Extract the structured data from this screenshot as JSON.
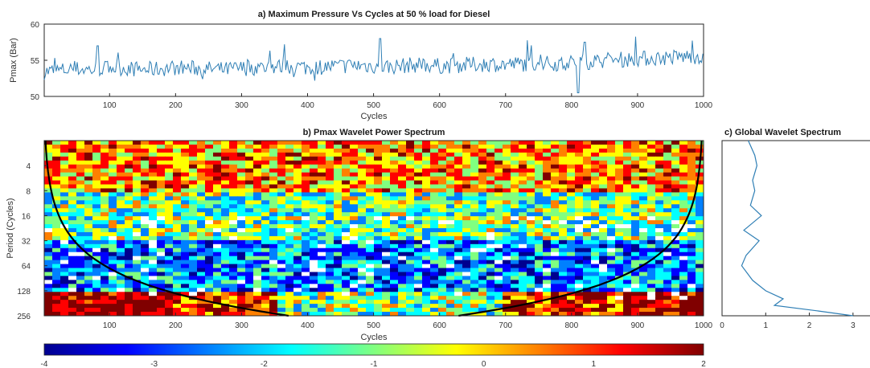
{
  "chart_data": [
    {
      "type": "line",
      "title": "a) Maximum Pressure Vs Cycles at 50 % load for Diesel",
      "xlabel": "Cycles",
      "ylabel": "Pmax (Bar)",
      "xlim": [
        1,
        1000
      ],
      "ylim": [
        50,
        60
      ],
      "xticks": [
        "100",
        "200",
        "300",
        "400",
        "500",
        "600",
        "700",
        "800",
        "900",
        "1000"
      ],
      "yticks": [
        "50",
        "55",
        "60"
      ],
      "series_color": "#2f7fb5",
      "series": [
        {
          "x": [
            1,
            25,
            50,
            75,
            100,
            125,
            150,
            175,
            200,
            225,
            250,
            275,
            300,
            325,
            350,
            375,
            400,
            425,
            450,
            475,
            500,
            525,
            550,
            575,
            600,
            625,
            650,
            675,
            700,
            725,
            750,
            775,
            800,
            825,
            850,
            875,
            900,
            925,
            950,
            975,
            1000
          ],
          "values": [
            53.4,
            53.6,
            53.8,
            53.7,
            54.0,
            53.9,
            53.7,
            53.8,
            54.0,
            53.9,
            53.8,
            53.7,
            53.9,
            54.0,
            54.1,
            54.2,
            54.0,
            54.1,
            54.2,
            54.3,
            54.2,
            54.1,
            54.3,
            54.4,
            54.2,
            54.3,
            54.4,
            54.5,
            54.4,
            54.5,
            54.6,
            54.5,
            54.7,
            54.8,
            55.0,
            55.1,
            55.2,
            55.3,
            55.4,
            55.5,
            55.6
          ]
        }
      ],
      "annotations": [
        {
          "x": 82,
          "value": 57.0,
          "note": "spike"
        },
        {
          "x": 365,
          "value": 57.2,
          "note": "spike"
        },
        {
          "x": 510,
          "value": 58.0,
          "note": "peak"
        },
        {
          "x": 810,
          "value": 50.5,
          "note": "dip"
        },
        {
          "x": 820,
          "value": 57.5,
          "note": "spike"
        }
      ]
    },
    {
      "type": "heatmap",
      "title": "b) Pmax Wavelet Power Spectrum",
      "xlabel": "Cycles",
      "ylabel": "Period (Cycles)",
      "xlim": [
        1,
        1000
      ],
      "ylim_period": [
        2,
        256
      ],
      "yscale": "log2",
      "xticks": [
        "100",
        "200",
        "300",
        "400",
        "500",
        "600",
        "700",
        "800",
        "900",
        "1000"
      ],
      "yticks": [
        "4",
        "8",
        "16",
        "32",
        "64",
        "128",
        "256"
      ],
      "cone_of_influence": true,
      "colorbar": {
        "range": [
          -4,
          2
        ],
        "ticks": [
          "-4",
          "-3",
          "-2",
          "-1",
          "0",
          "1",
          "2"
        ],
        "colormap": "jet",
        "colors": [
          "#00008f",
          "#0000ff",
          "#0080ff",
          "#00ffff",
          "#80ff80",
          "#ffff00",
          "#ff8000",
          "#ff0000",
          "#800000"
        ]
      },
      "bands": [
        {
          "period_range": [
            2,
            8
          ],
          "mean_log_power": 0.2,
          "description": "high-frequency mix of red/orange/blue patches"
        },
        {
          "period_range": [
            8,
            32
          ],
          "mean_log_power": -1.2,
          "description": "mostly cyan/blue with scattered yellow"
        },
        {
          "period_range": [
            32,
            128
          ],
          "mean_log_power": -2.3,
          "description": "blue and cyan, white low-power islands"
        },
        {
          "period_range": [
            128,
            256
          ],
          "mean_log_power": 0.9,
          "description": "red/orange at edges, cyan in center"
        }
      ]
    },
    {
      "type": "line",
      "title": "c) Global Wavelet Spectrum",
      "xticks": [
        "0",
        "1",
        "2",
        "3"
      ],
      "xlim": [
        0,
        3.5
      ],
      "ylim_period": [
        2,
        256
      ],
      "yscale": "log2",
      "series_color": "#2f7fb5",
      "series": [
        {
          "period": [
            2,
            3,
            4,
            6,
            8,
            12,
            16,
            24,
            32,
            48,
            64,
            96,
            128,
            160,
            192,
            224,
            256
          ],
          "power": [
            0.6,
            0.75,
            0.8,
            0.7,
            0.75,
            0.65,
            0.9,
            0.5,
            0.85,
            0.55,
            0.45,
            0.7,
            1.0,
            1.4,
            1.2,
            2.2,
            3.0
          ]
        }
      ]
    }
  ]
}
